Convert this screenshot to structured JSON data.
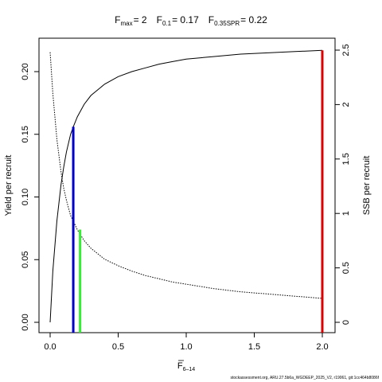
{
  "chart_data": {
    "type": "line",
    "title": {
      "fmax_label": "F",
      "fmax_sub": "max",
      "fmax_value": "= 2",
      "f01_label": "F",
      "f01_sub": "0.1",
      "f01_value": "= 0.17",
      "fspr_label": "F",
      "fspr_sub": "0.35SPR",
      "fspr_value": "= 0.22"
    },
    "xlabel": "F",
    "xlabel_sub": "6–14",
    "ylabel_left": "Yield per recruit",
    "ylabel_right": "SSB per recruit",
    "xlim": [
      0,
      2
    ],
    "ylim_left": [
      0,
      0.22
    ],
    "ylim_right": [
      0,
      2.5
    ],
    "x_ticks": [
      "0.0",
      "0.5",
      "1.0",
      "1.5",
      "2.0"
    ],
    "y_left_ticks": [
      "0.00",
      "0.05",
      "0.10",
      "0.15",
      "0.20"
    ],
    "y_right_ticks": [
      "0",
      "0.5",
      "1",
      "1.5",
      "2",
      "2.5"
    ],
    "grid": false,
    "series": [
      {
        "style": "solid",
        "axis": "left",
        "color": "#000000",
        "x": [
          0,
          0.02,
          0.05,
          0.08,
          0.1,
          0.12,
          0.15,
          0.17,
          0.2,
          0.25,
          0.3,
          0.4,
          0.5,
          0.6,
          0.7,
          0.8,
          0.9,
          1.0,
          1.2,
          1.4,
          1.6,
          1.8,
          2.0
        ],
        "y": [
          0,
          0.041,
          0.081,
          0.11,
          0.124,
          0.136,
          0.15,
          0.156,
          0.164,
          0.174,
          0.181,
          0.19,
          0.196,
          0.2,
          0.203,
          0.206,
          0.208,
          0.21,
          0.212,
          0.214,
          0.215,
          0.216,
          0.217
        ]
      },
      {
        "style": "dotted",
        "axis": "right",
        "color": "#000000",
        "x": [
          0,
          0.02,
          0.05,
          0.08,
          0.1,
          0.12,
          0.15,
          0.17,
          0.2,
          0.25,
          0.3,
          0.4,
          0.5,
          0.6,
          0.7,
          0.8,
          0.9,
          1.0,
          1.2,
          1.4,
          1.6,
          1.8,
          2.0
        ],
        "y": [
          2.48,
          2.1,
          1.68,
          1.38,
          1.23,
          1.12,
          0.98,
          0.93,
          0.85,
          0.75,
          0.68,
          0.58,
          0.52,
          0.47,
          0.43,
          0.4,
          0.37,
          0.35,
          0.31,
          0.28,
          0.26,
          0.24,
          0.22
        ]
      }
    ],
    "reference_lines": [
      {
        "name": "F0.1",
        "x": 0.17,
        "y": 0.156,
        "color": "#0000cc"
      },
      {
        "name": "F0.35SPR",
        "x": 0.22,
        "y": 0.074,
        "color": "#33ee33"
      },
      {
        "name": "Fmax",
        "x": 2.0,
        "y": 0.217,
        "color": "#dd0000"
      }
    ]
  },
  "footnote": "stockassessment.org, ARU.27.5b6a_WGDEEP_2025_V2, r19061, git:1cc464b8086f"
}
